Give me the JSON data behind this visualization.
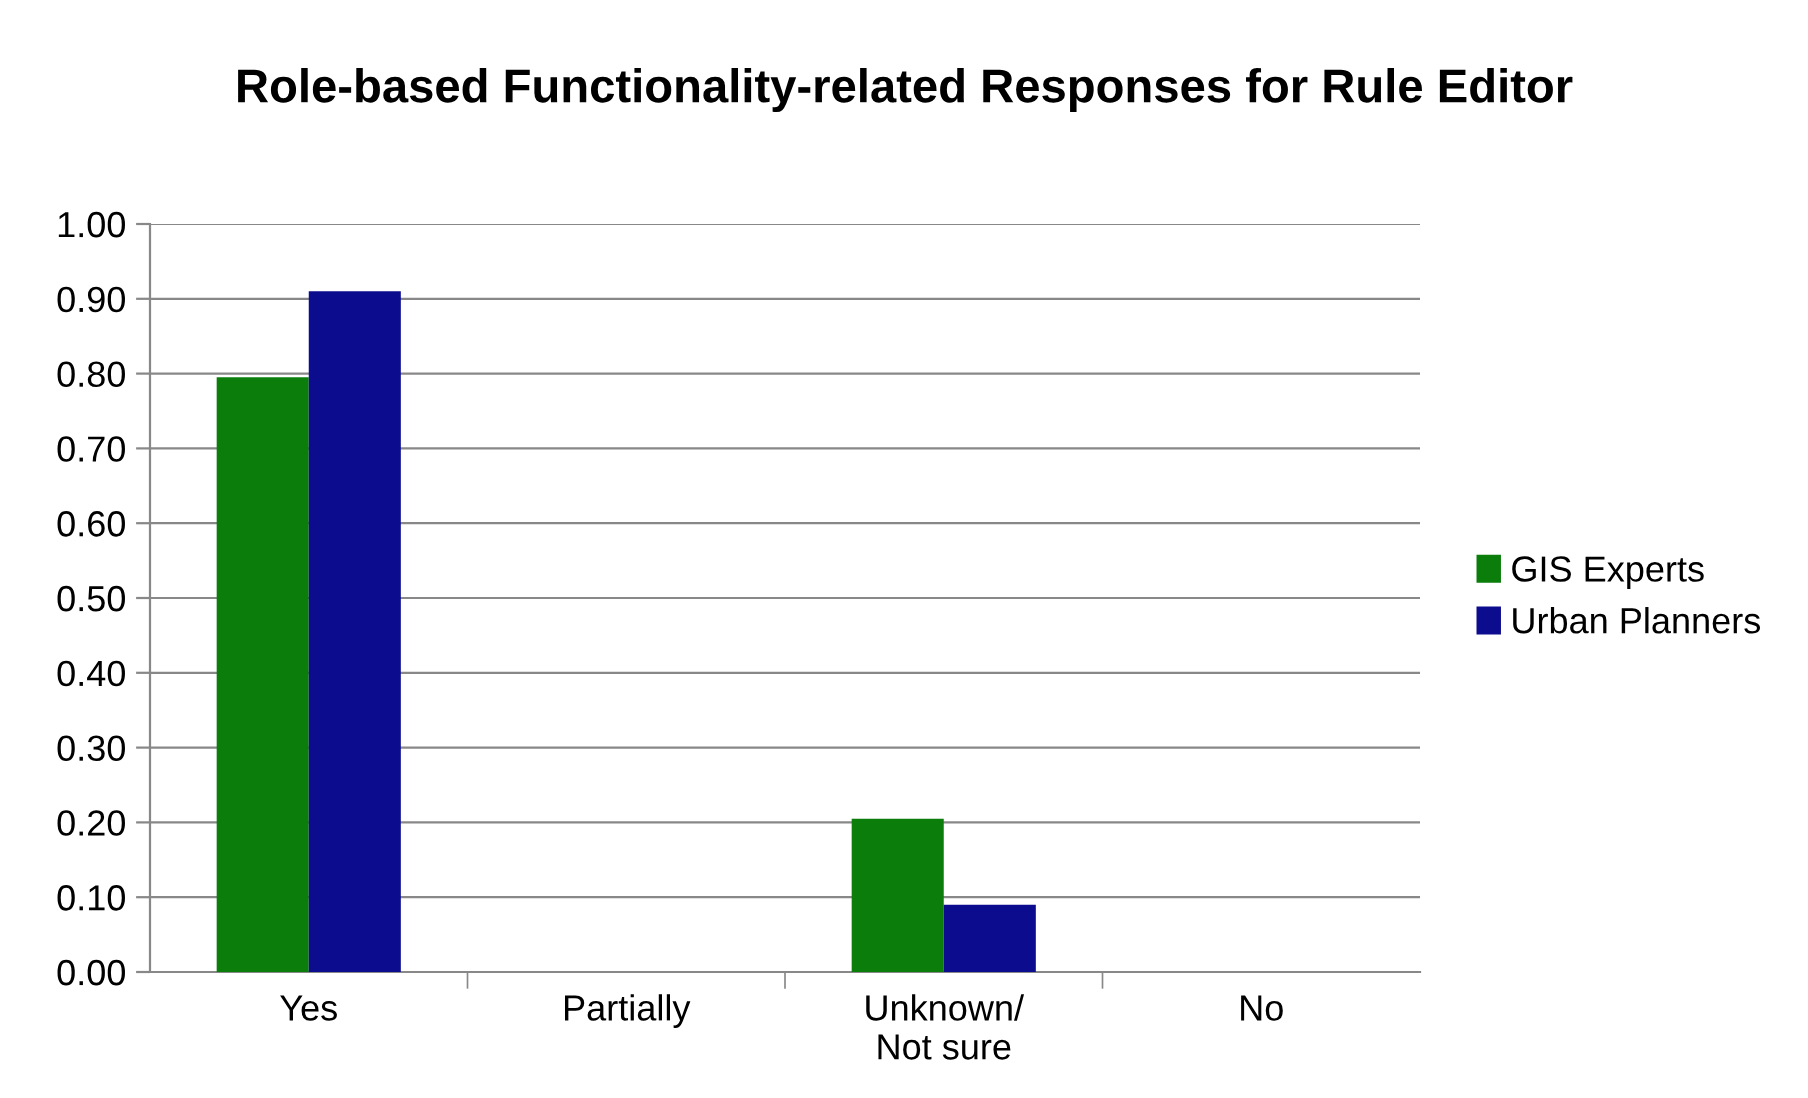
{
  "chart_data": {
    "type": "bar",
    "title": "Role-based Functionality-related Responses for Rule Editor",
    "categories": [
      "Yes",
      "Partially",
      "Unknown/Not sure",
      "No"
    ],
    "series": [
      {
        "name": "GIS Experts",
        "color": "#0b7d0b",
        "values": [
          0.795,
          0,
          0.205,
          0
        ]
      },
      {
        "name": "Urban Planners",
        "color": "#0c0c8e",
        "values": [
          0.91,
          0,
          0.09,
          0
        ]
      }
    ],
    "ylim": [
      0,
      1
    ],
    "yticks": [
      {
        "value": 0,
        "label": "0.00"
      },
      {
        "value": 0.1,
        "label": "0.10"
      },
      {
        "value": 0.2,
        "label": "0.20"
      },
      {
        "value": 0.3,
        "label": "0.30"
      },
      {
        "value": 0.4,
        "label": "0.40"
      },
      {
        "value": 0.5,
        "label": "0.50"
      },
      {
        "value": 0.6,
        "label": "0.60"
      },
      {
        "value": 0.7,
        "label": "0.70"
      },
      {
        "value": 0.8,
        "label": "0.80"
      },
      {
        "value": 0.9,
        "label": "0.90"
      },
      {
        "value": 1,
        "label": "1.00"
      }
    ],
    "grid": "y",
    "legend": "right"
  }
}
